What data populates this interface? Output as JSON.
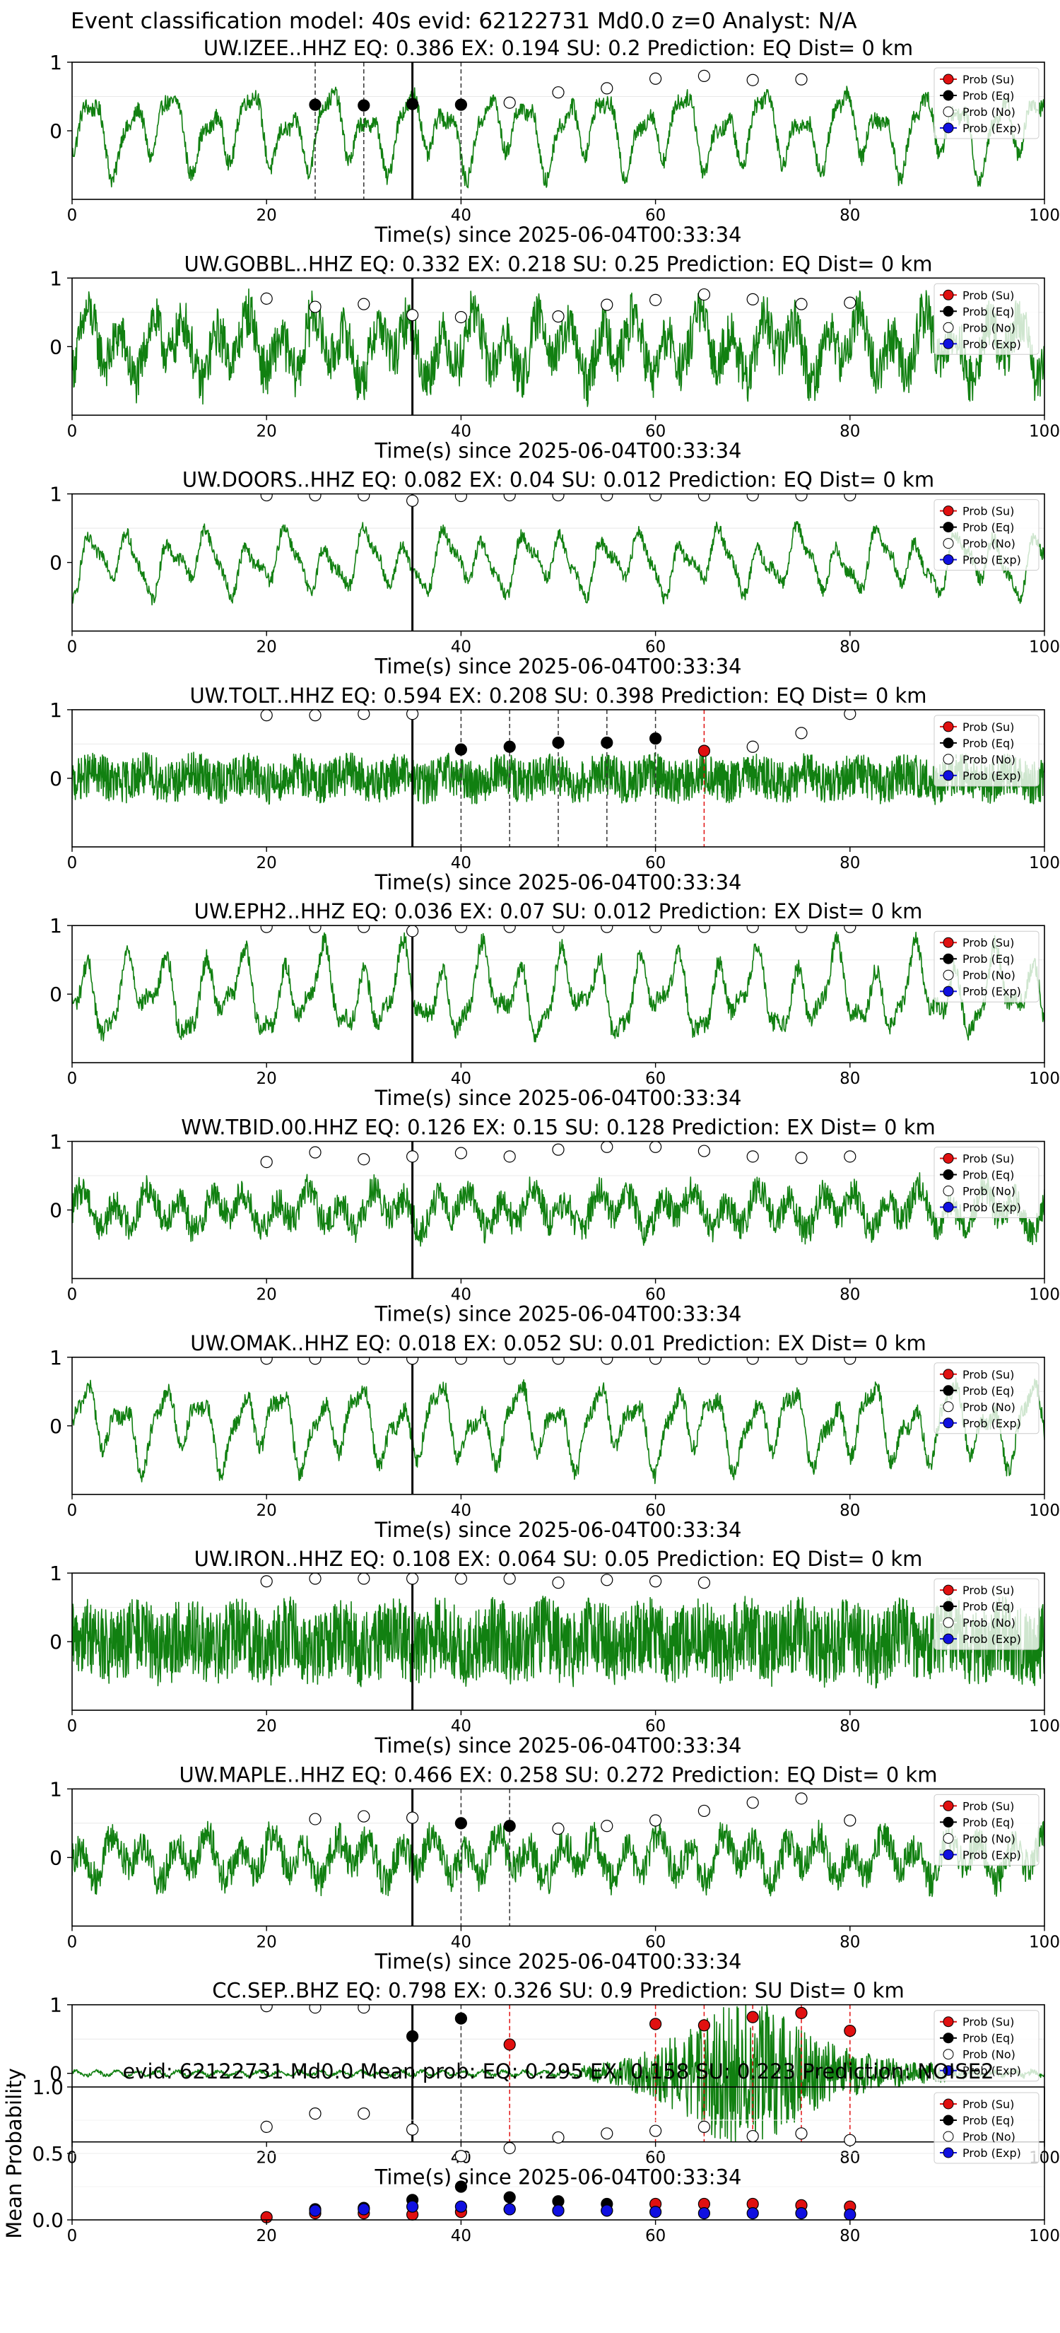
{
  "suptitle": "Event classification model: 40s evid: 62122731 Md0.0 z=0 Analyst: N/A",
  "colors": {
    "waveform": "#118011",
    "su": "#e01010",
    "eq": "#000000",
    "no": "#ffffff",
    "exp": "#1010e0"
  },
  "legend_labels": [
    "Prob (Su)",
    "Prob (Eq)",
    "Prob (No)",
    "Prob (Exp)"
  ],
  "chart_data": [
    {
      "type": "line",
      "title": "UW.IZEE..HHZ   EQ: 0.386  EX: 0.194  SU: 0.2   Prediction: EQ    Dist= 0 km",
      "xlabel": "Time(s) since 2025-06-04T00:33:34",
      "xlim": [
        0,
        100
      ],
      "ylim": [
        -1,
        1
      ],
      "xticks": [
        "0",
        "20",
        "40",
        "60",
        "80",
        "100"
      ],
      "yticks": [
        "1",
        "0"
      ],
      "waveform": {
        "kind": "lowfreq",
        "amplitude": 0.7
      },
      "pick_time": 35,
      "series": [
        {
          "name": "Prob (Su)",
          "x": [],
          "y": []
        },
        {
          "name": "Prob (Eq)",
          "x": [
            25,
            30,
            35,
            40
          ],
          "y": [
            0.38,
            0.37,
            0.39,
            0.38
          ]
        },
        {
          "name": "Prob (No)",
          "x": [
            45,
            50,
            55,
            60,
            65,
            70,
            75
          ],
          "y": [
            0.41,
            0.56,
            0.62,
            0.76,
            0.8,
            0.74,
            0.75
          ]
        },
        {
          "name": "Prob (Exp)",
          "x": [],
          "y": []
        }
      ],
      "dashed_markers": [
        {
          "x": 25,
          "color": "eq"
        },
        {
          "x": 30,
          "color": "eq"
        },
        {
          "x": 40,
          "color": "eq"
        }
      ]
    },
    {
      "type": "line",
      "title": "UW.GOBBL..HHZ   EQ: 0.332  EX: 0.218  SU: 0.25   Prediction: EQ    Dist= 0 km",
      "xlabel": "Time(s) since 2025-06-04T00:33:34",
      "xlim": [
        0,
        100
      ],
      "ylim": [
        -1,
        1
      ],
      "xticks": [
        "0",
        "20",
        "40",
        "60",
        "80",
        "100"
      ],
      "yticks": [
        "1",
        "0"
      ],
      "waveform": {
        "kind": "mixed",
        "amplitude": 0.8
      },
      "pick_time": 35,
      "series": [
        {
          "name": "Prob (Su)",
          "x": [],
          "y": []
        },
        {
          "name": "Prob (Eq)",
          "x": [],
          "y": []
        },
        {
          "name": "Prob (No)",
          "x": [
            20,
            25,
            30,
            35,
            40,
            50,
            55,
            60,
            65,
            70,
            75,
            80
          ],
          "y": [
            0.7,
            0.58,
            0.62,
            0.46,
            0.43,
            0.44,
            0.61,
            0.68,
            0.76,
            0.69,
            0.62,
            0.64
          ]
        },
        {
          "name": "Prob (Exp)",
          "x": [],
          "y": []
        }
      ],
      "dashed_markers": []
    },
    {
      "type": "line",
      "title": "UW.DOORS..HHZ   EQ: 0.082  EX: 0.04  SU: 0.012   Prediction: EQ    Dist= 0 km",
      "xlabel": "Time(s) since 2025-06-04T00:33:34",
      "xlim": [
        0,
        100
      ],
      "ylim": [
        -1,
        1
      ],
      "xticks": [
        "0",
        "20",
        "40",
        "60",
        "80",
        "100"
      ],
      "yticks": [
        "1",
        "0"
      ],
      "waveform": {
        "kind": "lowfreq",
        "amplitude": 0.55
      },
      "pick_time": 35,
      "series": [
        {
          "name": "Prob (Su)",
          "x": [],
          "y": []
        },
        {
          "name": "Prob (Eq)",
          "x": [],
          "y": []
        },
        {
          "name": "Prob (No)",
          "x": [
            20,
            25,
            30,
            35,
            40,
            45,
            50,
            55,
            60,
            65,
            70,
            75,
            80
          ],
          "y": [
            0.98,
            0.98,
            0.98,
            0.9,
            0.97,
            0.98,
            0.98,
            0.98,
            0.98,
            0.98,
            0.98,
            0.98,
            0.98
          ]
        },
        {
          "name": "Prob (Exp)",
          "x": [],
          "y": []
        }
      ],
      "dashed_markers": []
    },
    {
      "type": "line",
      "title": "UW.TOLT..HHZ   EQ: 0.594  EX: 0.208  SU: 0.398   Prediction: EQ    Dist= 0 km",
      "xlabel": "Time(s) since 2025-06-04T00:33:34",
      "xlim": [
        0,
        100
      ],
      "ylim": [
        -1,
        1
      ],
      "xticks": [
        "0",
        "20",
        "40",
        "60",
        "80",
        "100"
      ],
      "yticks": [
        "1",
        "0"
      ],
      "waveform": {
        "kind": "highfreq",
        "amplitude": 0.45
      },
      "pick_time": 35,
      "series": [
        {
          "name": "Prob (Su)",
          "x": [
            65
          ],
          "y": [
            0.4
          ]
        },
        {
          "name": "Prob (Eq)",
          "x": [
            40,
            45,
            50,
            55,
            60
          ],
          "y": [
            0.42,
            0.46,
            0.52,
            0.52,
            0.58
          ]
        },
        {
          "name": "Prob (No)",
          "x": [
            20,
            25,
            30,
            35,
            70,
            75,
            80
          ],
          "y": [
            0.92,
            0.92,
            0.94,
            0.94,
            0.46,
            0.66,
            0.94
          ]
        },
        {
          "name": "Prob (Exp)",
          "x": [],
          "y": []
        }
      ],
      "dashed_markers": [
        {
          "x": 40,
          "color": "eq"
        },
        {
          "x": 45,
          "color": "eq"
        },
        {
          "x": 50,
          "color": "eq"
        },
        {
          "x": 55,
          "color": "eq"
        },
        {
          "x": 60,
          "color": "eq"
        },
        {
          "x": 65,
          "color": "su"
        }
      ]
    },
    {
      "type": "line",
      "title": "UW.EPH2..HHZ   EQ: 0.036  EX: 0.07  SU: 0.012   Prediction: EX    Dist= 0 km",
      "xlabel": "Time(s) since 2025-06-04T00:33:34",
      "xlim": [
        0,
        100
      ],
      "ylim": [
        -1,
        1
      ],
      "xticks": [
        "0",
        "20",
        "40",
        "60",
        "80",
        "100"
      ],
      "yticks": [
        "1",
        "0"
      ],
      "waveform": {
        "kind": "lowfreq",
        "amplitude": 0.75
      },
      "pick_time": 35,
      "series": [
        {
          "name": "Prob (Su)",
          "x": [],
          "y": []
        },
        {
          "name": "Prob (Eq)",
          "x": [],
          "y": []
        },
        {
          "name": "Prob (No)",
          "x": [
            20,
            25,
            30,
            35,
            40,
            45,
            50,
            55,
            60,
            65,
            70,
            75,
            80
          ],
          "y": [
            0.98,
            0.98,
            0.98,
            0.92,
            0.98,
            0.98,
            0.98,
            0.98,
            0.98,
            0.98,
            0.98,
            0.98,
            0.98
          ]
        },
        {
          "name": "Prob (Exp)",
          "x": [],
          "y": []
        }
      ],
      "dashed_markers": []
    },
    {
      "type": "line",
      "title": "WW.TBID.00.HHZ   EQ: 0.126  EX: 0.15  SU: 0.128   Prediction: EX    Dist= 0 km",
      "xlabel": "Time(s) since 2025-06-04T00:33:34",
      "xlim": [
        0,
        100
      ],
      "ylim": [
        -1,
        1
      ],
      "xticks": [
        "0",
        "20",
        "40",
        "60",
        "80",
        "100"
      ],
      "yticks": [
        "1",
        "0"
      ],
      "waveform": {
        "kind": "mixed",
        "amplitude": 0.5
      },
      "pick_time": 35,
      "series": [
        {
          "name": "Prob (Su)",
          "x": [],
          "y": []
        },
        {
          "name": "Prob (Eq)",
          "x": [],
          "y": []
        },
        {
          "name": "Prob (No)",
          "x": [
            20,
            25,
            30,
            35,
            40,
            45,
            50,
            55,
            60,
            65,
            70,
            75,
            80
          ],
          "y": [
            0.7,
            0.84,
            0.74,
            0.78,
            0.83,
            0.78,
            0.88,
            0.92,
            0.92,
            0.86,
            0.78,
            0.76,
            0.78
          ]
        },
        {
          "name": "Prob (Exp)",
          "x": [],
          "y": []
        }
      ],
      "dashed_markers": []
    },
    {
      "type": "line",
      "title": "UW.OMAK..HHZ   EQ: 0.018  EX: 0.052  SU: 0.01   Prediction: EX    Dist= 0 km",
      "xlabel": "Time(s) since 2025-06-04T00:33:34",
      "xlim": [
        0,
        100
      ],
      "ylim": [
        -1,
        1
      ],
      "xticks": [
        "0",
        "20",
        "40",
        "60",
        "80",
        "100"
      ],
      "yticks": [
        "1",
        "0"
      ],
      "waveform": {
        "kind": "lowfreq",
        "amplitude": 0.7
      },
      "pick_time": 35,
      "series": [
        {
          "name": "Prob (Su)",
          "x": [],
          "y": []
        },
        {
          "name": "Prob (Eq)",
          "x": [],
          "y": []
        },
        {
          "name": "Prob (No)",
          "x": [
            20,
            25,
            30,
            35,
            40,
            45,
            50,
            55,
            60,
            65,
            70,
            75,
            80
          ],
          "y": [
            0.98,
            0.98,
            0.98,
            0.98,
            0.98,
            0.98,
            0.98,
            0.98,
            0.98,
            0.98,
            0.98,
            0.98,
            0.98
          ]
        },
        {
          "name": "Prob (Exp)",
          "x": [],
          "y": []
        }
      ],
      "dashed_markers": []
    },
    {
      "type": "line",
      "title": "UW.IRON..HHZ   EQ: 0.108  EX: 0.064  SU: 0.05   Prediction: EQ    Dist= 0 km",
      "xlabel": "Time(s) since 2025-06-04T00:33:34",
      "xlim": [
        0,
        100
      ],
      "ylim": [
        -1,
        1
      ],
      "xticks": [
        "0",
        "20",
        "40",
        "60",
        "80",
        "100"
      ],
      "yticks": [
        "1",
        "0"
      ],
      "waveform": {
        "kind": "highfreq",
        "amplitude": 0.8
      },
      "pick_time": 35,
      "series": [
        {
          "name": "Prob (Su)",
          "x": [],
          "y": []
        },
        {
          "name": "Prob (Eq)",
          "x": [],
          "y": []
        },
        {
          "name": "Prob (No)",
          "x": [
            20,
            25,
            30,
            35,
            40,
            45,
            50,
            55,
            60,
            65
          ],
          "y": [
            0.88,
            0.92,
            0.92,
            0.92,
            0.92,
            0.92,
            0.86,
            0.9,
            0.88,
            0.86
          ]
        },
        {
          "name": "Prob (Exp)",
          "x": [],
          "y": []
        }
      ],
      "dashed_markers": []
    },
    {
      "type": "line",
      "title": "UW.MAPLE..HHZ   EQ: 0.466  EX: 0.258  SU: 0.272   Prediction: EQ    Dist= 0 km",
      "xlabel": "Time(s) since 2025-06-04T00:33:34",
      "xlim": [
        0,
        100
      ],
      "ylim": [
        -1,
        1
      ],
      "xticks": [
        "0",
        "20",
        "40",
        "60",
        "80",
        "100"
      ],
      "yticks": [
        "1",
        "0"
      ],
      "waveform": {
        "kind": "mixed",
        "amplitude": 0.55
      },
      "pick_time": 35,
      "series": [
        {
          "name": "Prob (Su)",
          "x": [],
          "y": []
        },
        {
          "name": "Prob (Eq)",
          "x": [
            40,
            45
          ],
          "y": [
            0.5,
            0.46
          ]
        },
        {
          "name": "Prob (No)",
          "x": [
            25,
            30,
            35,
            50,
            55,
            60,
            65,
            70,
            75,
            80
          ],
          "y": [
            0.56,
            0.6,
            0.58,
            0.42,
            0.46,
            0.54,
            0.68,
            0.8,
            0.86,
            0.54
          ]
        },
        {
          "name": "Prob (Exp)",
          "x": [],
          "y": []
        }
      ],
      "dashed_markers": [
        {
          "x": 40,
          "color": "eq"
        },
        {
          "x": 45,
          "color": "eq"
        }
      ]
    },
    {
      "type": "line",
      "title": "CC.SEP..BHZ   EQ: 0.798  EX: 0.326  SU: 0.9   Prediction: SU    Dist= 0 km",
      "xlabel": "Time(s) since 2025-06-04T00:33:34",
      "xlim": [
        0,
        100
      ],
      "ylim": [
        -1,
        1
      ],
      "xticks": [
        "0",
        "20",
        "40",
        "60",
        "80",
        "100"
      ],
      "yticks": [
        "1",
        "0"
      ],
      "waveform": {
        "kind": "emergent",
        "amplitude": 0.85
      },
      "pick_time": 35,
      "series": [
        {
          "name": "Prob (Su)",
          "x": [
            45,
            60,
            65,
            70,
            75,
            80
          ],
          "y": [
            0.42,
            0.72,
            0.7,
            0.82,
            0.88,
            0.62
          ]
        },
        {
          "name": "Prob (Eq)",
          "x": [
            35,
            40
          ],
          "y": [
            0.54,
            0.8
          ]
        },
        {
          "name": "Prob (No)",
          "x": [
            20,
            25,
            30
          ],
          "y": [
            0.98,
            0.96,
            0.96
          ]
        },
        {
          "name": "Prob (Exp)",
          "x": [],
          "y": []
        }
      ],
      "dashed_markers": [
        {
          "x": 40,
          "color": "eq"
        },
        {
          "x": 45,
          "color": "su"
        },
        {
          "x": 60,
          "color": "su"
        },
        {
          "x": 65,
          "color": "su"
        },
        {
          "x": 70,
          "color": "su"
        },
        {
          "x": 75,
          "color": "su"
        },
        {
          "x": 80,
          "color": "su"
        }
      ]
    }
  ],
  "summary_chart": {
    "type": "scatter",
    "title": "evid: 62122731  Md0.0   Mean prob:   EQ: 0.295  EX: 0.158  SU: 0.223   Prediction: NOISE2",
    "ylabel": "Mean Probability",
    "xlim": [
      0,
      100
    ],
    "ylim": [
      0,
      1
    ],
    "xticks": [
      "0",
      "20",
      "40",
      "60",
      "80",
      "100"
    ],
    "yticks": [
      "0.0",
      "0.5",
      "1.0"
    ],
    "series": [
      {
        "name": "Prob (Su)",
        "x": [
          20,
          25,
          30,
          35,
          40,
          45,
          50,
          55,
          60,
          65,
          70,
          75,
          80
        ],
        "y": [
          0.02,
          0.05,
          0.05,
          0.04,
          0.06,
          0.08,
          0.07,
          0.07,
          0.12,
          0.12,
          0.12,
          0.11,
          0.1
        ]
      },
      {
        "name": "Prob (Eq)",
        "x": [
          25,
          30,
          35,
          40,
          45,
          50,
          55
        ],
        "y": [
          0.08,
          0.09,
          0.15,
          0.25,
          0.17,
          0.14,
          0.12
        ]
      },
      {
        "name": "Prob (No)",
        "x": [
          20,
          25,
          30,
          35,
          40,
          45,
          50,
          55,
          60,
          65,
          70,
          75,
          80
        ],
        "y": [
          0.7,
          0.8,
          0.8,
          0.68,
          0.48,
          0.54,
          0.62,
          0.65,
          0.67,
          0.7,
          0.63,
          0.65,
          0.6
        ]
      },
      {
        "name": "Prob (Exp)",
        "x": [
          25,
          30,
          35,
          40,
          45,
          50,
          55,
          60,
          65,
          70,
          75,
          80
        ],
        "y": [
          0.07,
          0.08,
          0.1,
          0.1,
          0.08,
          0.07,
          0.07,
          0.06,
          0.05,
          0.05,
          0.05,
          0.04
        ]
      }
    ]
  }
}
